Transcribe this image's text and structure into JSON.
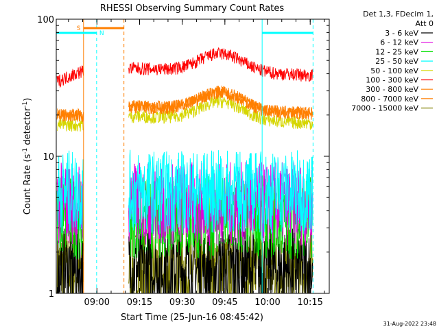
{
  "chart_data": {
    "type": "line",
    "title": "RHESSI Observing Summary Count Rates",
    "xlabel": "Start Time (25-Jun-16 08:45:42)",
    "ylabel_main": "Count Rate (s",
    "ylabel_sup1": "-1",
    "ylabel_mid": " detector",
    "ylabel_sup2": "-1",
    "ylabel_end": ")",
    "yscale": "log",
    "ylim": [
      1,
      100
    ],
    "xlim_minutes": [
      0,
      96
    ],
    "x_ticks": [
      {
        "label": "09:00",
        "min": 14.3
      },
      {
        "label": "09:15",
        "min": 29.3
      },
      {
        "label": "09:30",
        "min": 44.3
      },
      {
        "label": "09:45",
        "min": 59.3
      },
      {
        "label": "10:00",
        "min": 74.3
      },
      {
        "label": "10:15",
        "min": 89.3
      }
    ],
    "y_ticks": [
      {
        "label": "1",
        "value": 1
      },
      {
        "label": "10",
        "value": 10
      },
      {
        "label": "100",
        "value": 100
      }
    ],
    "legend_header": [
      "Det 1,3, FDecim 1,",
      "Att 0"
    ],
    "series": [
      {
        "name": "3 - 6 keV",
        "color": "#000000",
        "level": 1.5
      },
      {
        "name": "6 - 12 keV",
        "color": "#e000e0",
        "level": 4.5
      },
      {
        "name": "12 - 25 keV",
        "color": "#00e000",
        "level": 3.6
      },
      {
        "name": "25 - 50 keV",
        "color": "#00ffff",
        "level": 5.5
      },
      {
        "name": "50 - 100 keV",
        "color": "#d6d600",
        "level": 17
      },
      {
        "name": "100 - 300 keV",
        "color": "#ff0000",
        "level": 38
      },
      {
        "name": "300 - 800 keV",
        "color": "#ff7f00",
        "level": 20
      },
      {
        "name": "800 - 7000 keV",
        "color": "#ff7f00",
        "level": 20
      },
      {
        "name": "7000 - 15000 keV",
        "color": "#808000",
        "level": 1.5
      }
    ],
    "flags": [
      {
        "label": "S",
        "color": "#ff7f00",
        "start_min": 9.6,
        "end_min": 23.8
      },
      {
        "label": "N",
        "color": "#00ffff",
        "start_min": 0,
        "end_min": 14.2
      },
      {
        "label": "N",
        "color": "#00ffff",
        "start_min": 72.4,
        "end_min": 90.3
      }
    ],
    "lines": [
      {
        "min": 9.6,
        "color": "#ff7f00",
        "style": "solid"
      },
      {
        "min": 14.2,
        "color": "#00ffff",
        "style": "dashed"
      },
      {
        "min": 23.8,
        "color": "#ff7f00",
        "style": "dashed"
      },
      {
        "min": 72.4,
        "color": "#00ffff",
        "style": "solid"
      },
      {
        "min": 90.3,
        "color": "#00ffff",
        "style": "dashed"
      }
    ],
    "gap_minutes": [
      9.6,
      25.5
    ],
    "footer_date": "31-Aug-2022 23:48"
  }
}
